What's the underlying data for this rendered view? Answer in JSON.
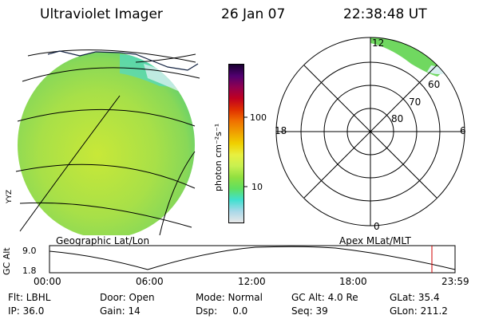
{
  "header": {
    "title": "Ultraviolet Imager",
    "date": "26 Jan 07",
    "time": "22:38:48 UT"
  },
  "colorbar": {
    "unit_label": "photon cm⁻²s⁻¹",
    "tick_100": "100",
    "tick_10": "10",
    "colors": [
      "#e8e8e8",
      "#a8d8e8",
      "#40e0d0",
      "#60e060",
      "#90e040",
      "#c8f050",
      "#e8f040",
      "#f0d000",
      "#f0a000",
      "#f07000",
      "#e03000",
      "#c00020",
      "#900050",
      "#500070",
      "#1a0030"
    ]
  },
  "image_panel": {
    "caption": "Geographic Lat/Lon",
    "corner_label": "YYZ"
  },
  "polar_plot": {
    "caption": "Apex MLat/MLT",
    "mlt_labels": {
      "top": "12",
      "left": "18",
      "right": "6",
      "bottom": "0"
    },
    "lat_labels": [
      "60",
      "70",
      "80"
    ]
  },
  "altitude_plot": {
    "ylabel": "GC Alt",
    "ytick_high": "9.0",
    "ytick_low": "1.8",
    "xticks": [
      "00:00",
      "06:00",
      "12:00",
      "18:00",
      "23:59"
    ]
  },
  "info": {
    "filter": "Flt: LBHL",
    "door": "Door: Open",
    "mode": "Mode: Normal",
    "gc_alt": "GC Alt: 4.0 Re",
    "glat": "GLat: 35.4",
    "ip": "IP: 36.0",
    "gain": "Gain: 14",
    "dsp": "Dsp:     0.0",
    "seq": "Seq: 39",
    "glon": "GLon: 211.2"
  }
}
